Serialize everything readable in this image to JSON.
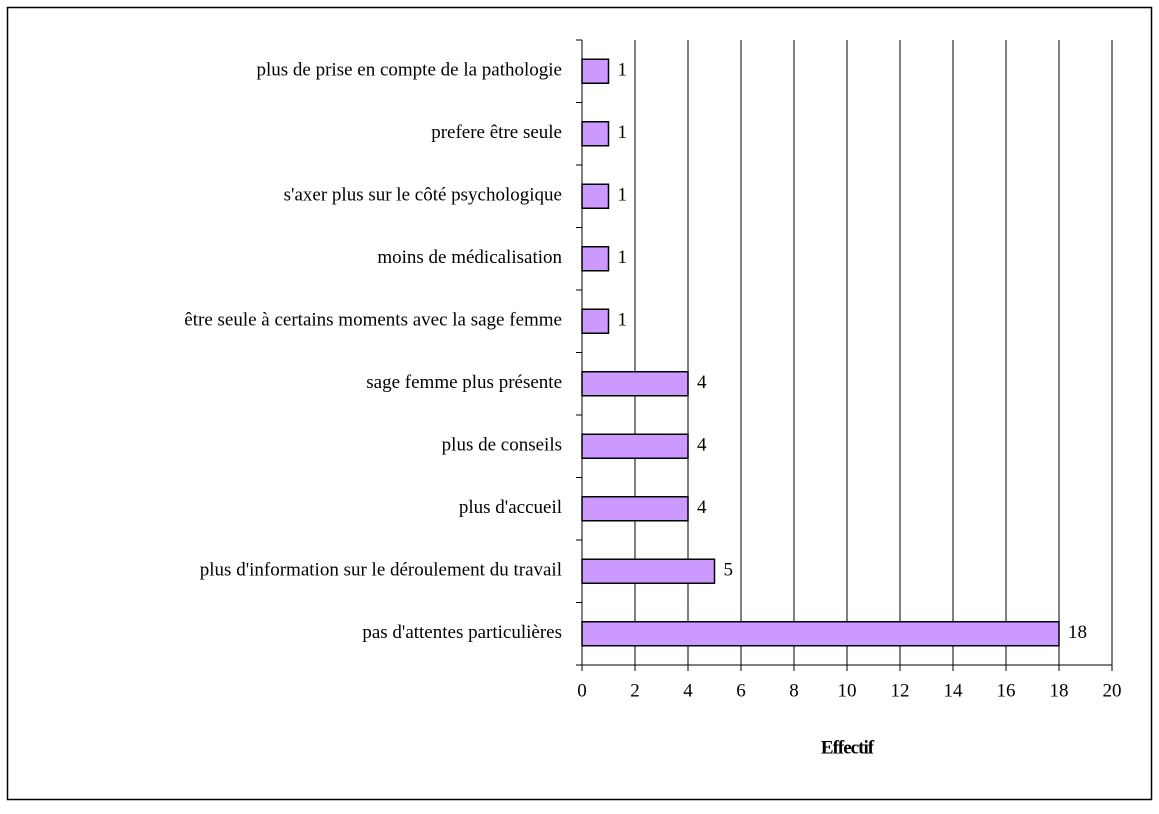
{
  "chart_data": {
    "type": "bar",
    "orientation": "horizontal",
    "xlabel": "Effectif",
    "categories": [
      "plus de prise en compte de la pathologie",
      "prefere être seule",
      "s'axer plus sur le côté psychologique",
      "moins de médicalisation",
      "être seule à certains moments avec la sage femme",
      "sage femme plus présente",
      "plus de conseils",
      "plus d'accueil",
      "plus d'information sur le déroulement du travail",
      "pas d'attentes particulières"
    ],
    "values": [
      1,
      1,
      1,
      1,
      1,
      4,
      4,
      4,
      5,
      18
    ],
    "color": "#cc99ff",
    "xlim": [
      0,
      20
    ],
    "xticks": [
      0,
      2,
      4,
      6,
      8,
      10,
      12,
      14,
      16,
      18,
      20
    ],
    "grid": true
  }
}
